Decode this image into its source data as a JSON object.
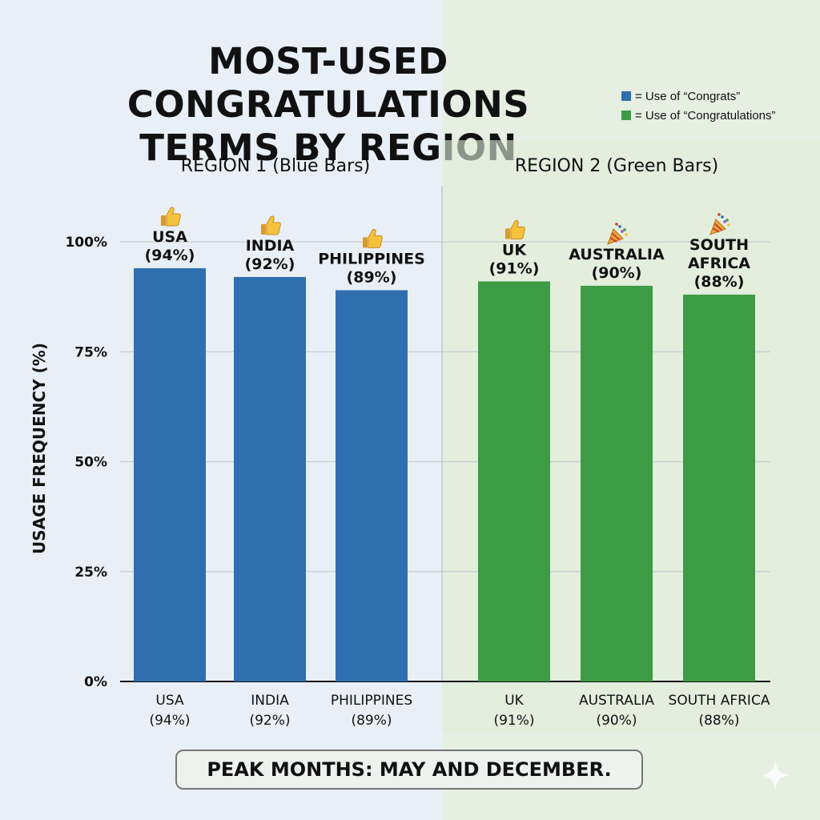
{
  "title_lines": [
    "MOST-USED CONGRATULATIONS",
    "TERMS BY REGION"
  ],
  "legend": [
    {
      "color": "#2f6fb0",
      "label": "= Use of “Congrats”"
    },
    {
      "color": "#3e9b45",
      "label": "= Use of “Congratulations”"
    }
  ],
  "footer": "PEAK MONTHS: MAY AND DECEMBER.",
  "chart_data": {
    "type": "bar",
    "ylabel": "USAGE FREQUENCY (%)",
    "ylim": [
      0,
      100
    ],
    "yticks": [
      0,
      25,
      50,
      75,
      100
    ],
    "ytick_labels": [
      "0%",
      "25%",
      "50%",
      "75%",
      "100%"
    ],
    "grid": true,
    "legend_position": "top-right",
    "groups": [
      {
        "title": "REGION 1 (Blue Bars)",
        "color": "#2f6fb0",
        "bars": [
          {
            "category": "USA",
            "value": 94,
            "icon": "thumbs-up-icon",
            "label_lines": [
              "USA",
              "(94%)"
            ],
            "axis_lines": [
              "USA",
              "(94%)"
            ]
          },
          {
            "category": "INDIA",
            "value": 92,
            "icon": "thumbs-up-icon",
            "label_lines": [
              "INDIA",
              "(92%)"
            ],
            "axis_lines": [
              "INDIA",
              "(92%)"
            ]
          },
          {
            "category": "PHILIPPINES",
            "value": 89,
            "icon": "thumbs-up-icon",
            "label_lines": [
              "PHILIPPINES",
              "(89%)"
            ],
            "axis_lines": [
              "PHILIPPINES",
              "(89%)"
            ]
          }
        ]
      },
      {
        "title": "REGION 2 (Green Bars)",
        "color": "#3e9b45",
        "bars": [
          {
            "category": "UK",
            "value": 91,
            "icon": "thumbs-up-icon",
            "label_lines": [
              "UK",
              "(91%)"
            ],
            "axis_lines": [
              "UK",
              "(91%)"
            ]
          },
          {
            "category": "AUSTRALIA",
            "value": 90,
            "icon": "party-popper-icon",
            "label_lines": [
              "AUSTRALIA",
              "(90%)"
            ],
            "axis_lines": [
              "AUSTRALIA",
              "(90%)"
            ]
          },
          {
            "category": "SOUTH AFRICA",
            "value": 88,
            "icon": "party-popper-icon",
            "label_lines": [
              "SOUTH",
              "AFRICA",
              "(88%)"
            ],
            "axis_lines": [
              "SOUTH AFRICA",
              "(88%)"
            ]
          }
        ]
      }
    ]
  }
}
